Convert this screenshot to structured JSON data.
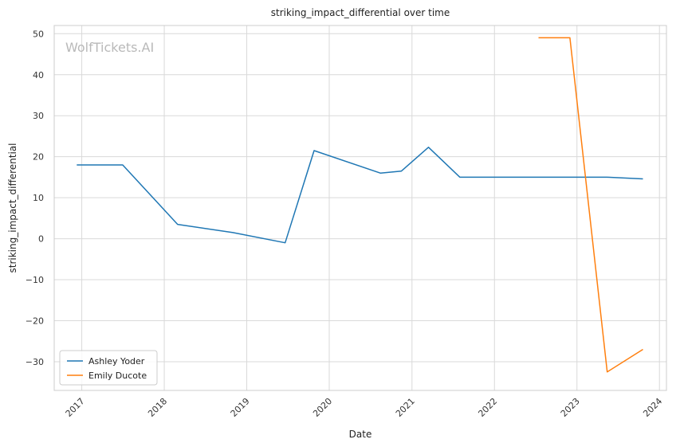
{
  "chart_data": {
    "type": "line",
    "title": "striking_impact_differential over time",
    "xlabel": "Date",
    "ylabel": "striking_impact_differential",
    "watermark": "WolfTickets.AI",
    "x_ticks": [
      "2017",
      "2018",
      "2019",
      "2020",
      "2021",
      "2022",
      "2023",
      "2024"
    ],
    "y_ticks": [
      "50",
      "40",
      "30",
      "20",
      "10",
      "0",
      "−10",
      "−20",
      "−30"
    ],
    "xlim": [
      "2016-09-01",
      "2024-02-01"
    ],
    "ylim": [
      -37,
      52
    ],
    "grid": true,
    "legend_position": "lower-left",
    "series": [
      {
        "name": "Ashley Yoder",
        "color": "#1f77b4",
        "points": [
          {
            "x": "2016-12-10",
            "y": 18
          },
          {
            "x": "2017-07-01",
            "y": 18
          },
          {
            "x": "2018-03-01",
            "y": 3.5
          },
          {
            "x": "2018-11-01",
            "y": 1.5
          },
          {
            "x": "2019-06-20",
            "y": -1
          },
          {
            "x": "2019-10-26",
            "y": 21.5
          },
          {
            "x": "2020-08-15",
            "y": 16
          },
          {
            "x": "2020-11-15",
            "y": 16.5
          },
          {
            "x": "2021-03-15",
            "y": 22.3
          },
          {
            "x": "2021-08-01",
            "y": 15
          },
          {
            "x": "2023-05-15",
            "y": 15
          },
          {
            "x": "2023-10-20",
            "y": 14.6
          }
        ]
      },
      {
        "name": "Emily Ducote",
        "color": "#ff7f0e",
        "points": [
          {
            "x": "2022-07-15",
            "y": 49
          },
          {
            "x": "2022-12-01",
            "y": 49
          },
          {
            "x": "2023-05-15",
            "y": -32.5
          },
          {
            "x": "2023-10-20",
            "y": -27
          }
        ]
      }
    ]
  }
}
